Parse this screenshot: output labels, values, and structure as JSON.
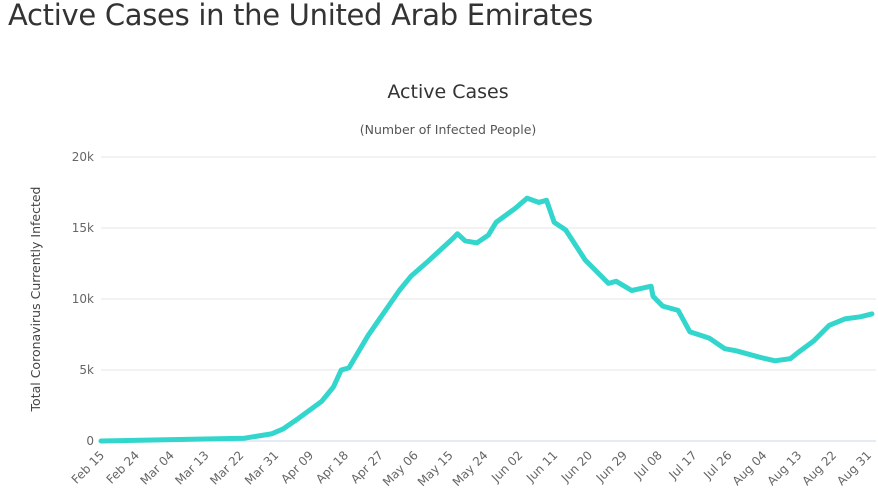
{
  "page": {
    "title": "Active Cases in the United Arab Emirates"
  },
  "chart_data": {
    "type": "line",
    "title": "Active Cases",
    "subtitle": "(Number of Infected People)",
    "xlabel": "",
    "ylabel": "Total Coronavirus Currently Infected",
    "ylim": [
      0,
      20000
    ],
    "yticks": [
      0,
      5000,
      10000,
      15000,
      20000
    ],
    "ytick_labels": [
      "0",
      "5k",
      "10k",
      "15k",
      "20k"
    ],
    "xtick_labels": [
      "Feb 15",
      "Feb 24",
      "Mar 04",
      "Mar 13",
      "Mar 22",
      "Mar 31",
      "Apr 09",
      "Apr 18",
      "Apr 27",
      "May 06",
      "May 15",
      "May 24",
      "Jun 02",
      "Jun 11",
      "Jun 20",
      "Jun 29",
      "Jul 08",
      "Jul 17",
      "Jul 26",
      "Aug 04",
      "Aug 13",
      "Aug 22",
      "Aug 31"
    ],
    "x_days_range": [
      0,
      198
    ],
    "grid": true,
    "color": "#33d6cc",
    "series": [
      {
        "name": "Active Cases",
        "day_offset_from_feb15": [
          0,
          37,
          44,
          47,
          51,
          57,
          60,
          62,
          64,
          69,
          77,
          80,
          84,
          87,
          91,
          92,
          94,
          97,
          100,
          102,
          107,
          110,
          113,
          115,
          117,
          120,
          125,
          131,
          133,
          137,
          142,
          142.5,
          145,
          149,
          152,
          157,
          161,
          164,
          170,
          174,
          178,
          180,
          184,
          188,
          192,
          196,
          199
        ],
        "values": [
          0,
          200,
          500,
          850,
          1600,
          2800,
          3800,
          5000,
          5150,
          7450,
          10600,
          11600,
          12550,
          13300,
          14300,
          14600,
          14100,
          13950,
          14500,
          15400,
          16400,
          17100,
          16800,
          16950,
          15400,
          14850,
          12750,
          11100,
          11250,
          10600,
          10900,
          10200,
          9500,
          9200,
          7700,
          7250,
          6500,
          6350,
          5900,
          5650,
          5800,
          6250,
          7050,
          8150,
          8600,
          8750,
          8950
        ]
      }
    ]
  }
}
